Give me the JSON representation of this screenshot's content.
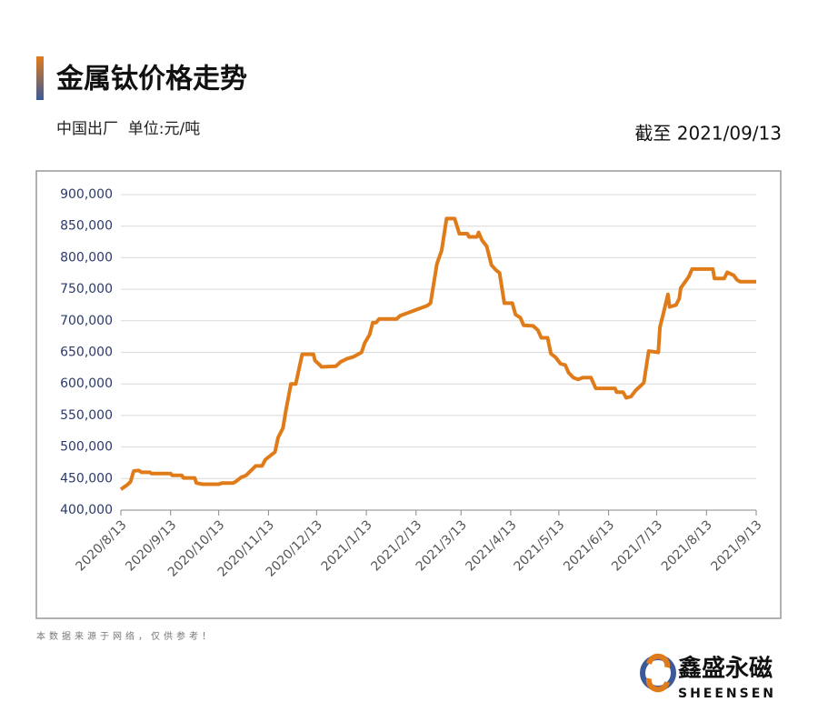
{
  "header": {
    "title": "金属钛价格走势",
    "subtitle": "中国出厂  单位:元/吨",
    "date": "截至 2021/09/13"
  },
  "chart_data": {
    "type": "line",
    "color": "#e07b1a",
    "grid": true,
    "x": [
      "2020/8/13",
      "2020/8/17",
      "2020/8/19",
      "2020/8/21",
      "2020/8/24",
      "2020/8/26",
      "2020/8/31",
      "2020/9/1",
      "2020/9/13",
      "2020/9/14",
      "2020/9/20",
      "2020/9/21",
      "2020/9/28",
      "2020/9/29",
      "2020/10/3",
      "2020/10/13",
      "2020/10/15",
      "2020/10/22",
      "2020/10/24",
      "2020/10/27",
      "2020/10/30",
      "2020/11/5",
      "2020/11/9",
      "2020/11/11",
      "2020/11/15",
      "2020/11/17",
      "2020/11/19",
      "2020/11/22",
      "2020/11/24",
      "2020/11/27",
      "2020/11/30",
      "2020/12/4",
      "2020/12/11",
      "2020/12/12",
      "2020/12/15",
      "2020/12/16",
      "2020/12/25",
      "2020/12/28",
      "2021/1/1",
      "2021/1/5",
      "2021/1/10",
      "2021/1/12",
      "2021/1/15",
      "2021/1/17",
      "2021/1/19",
      "2021/1/21",
      "2021/2/1",
      "2021/2/3",
      "2021/2/20",
      "2021/2/22",
      "2021/2/26",
      "2021/3/1",
      "2021/3/4",
      "2021/3/9",
      "2021/3/12",
      "2021/3/17",
      "2021/3/18",
      "2021/3/23",
      "2021/3/24",
      "2021/3/26",
      "2021/3/29",
      "2021/4/1",
      "2021/4/4",
      "2021/4/6",
      "2021/4/9",
      "2021/4/14",
      "2021/4/16",
      "2021/4/19",
      "2021/4/21",
      "2021/4/27",
      "2021/4/30",
      "2021/5/2",
      "2021/5/6",
      "2021/5/8",
      "2021/5/11",
      "2021/5/14",
      "2021/5/17",
      "2021/5/19",
      "2021/5/22",
      "2021/5/25",
      "2021/5/28",
      "2021/6/2",
      "2021/6/5",
      "2021/6/17",
      "2021/6/18",
      "2021/6/22",
      "2021/6/24",
      "2021/6/27",
      "2021/6/30",
      "2021/7/3",
      "2021/7/5",
      "2021/7/8",
      "2021/7/14",
      "2021/7/15",
      "2021/7/17",
      "2021/7/20",
      "2021/7/21",
      "2021/7/25",
      "2021/7/27",
      "2021/7/28",
      "2021/8/2",
      "2021/8/4",
      "2021/8/17",
      "2021/8/18",
      "2021/8/24",
      "2021/8/26",
      "2021/8/30",
      "2021/9/1",
      "2021/9/3",
      "2021/9/13"
    ],
    "values": [
      433000,
      440000,
      445000,
      462000,
      463000,
      460000,
      460000,
      458000,
      458000,
      455000,
      455000,
      451000,
      451000,
      443000,
      441000,
      441000,
      443000,
      443000,
      446000,
      452000,
      455000,
      470000,
      470000,
      480000,
      488000,
      492000,
      515000,
      530000,
      560000,
      600000,
      600000,
      647000,
      647000,
      637000,
      630000,
      627000,
      628000,
      635000,
      640000,
      643000,
      650000,
      665000,
      678000,
      697000,
      697000,
      703000,
      703000,
      708000,
      724000,
      728000,
      790000,
      812000,
      862000,
      862000,
      838000,
      838000,
      833000,
      833000,
      840000,
      828000,
      818000,
      788000,
      780000,
      776000,
      728000,
      728000,
      710000,
      705000,
      693000,
      692000,
      685000,
      673000,
      673000,
      648000,
      642000,
      632000,
      630000,
      618000,
      610000,
      607000,
      610000,
      610000,
      593000,
      593000,
      587000,
      587000,
      578000,
      580000,
      590000,
      597000,
      602000,
      652000,
      650000,
      690000,
      710000,
      742000,
      722000,
      725000,
      735000,
      752000,
      770000,
      782000,
      782000,
      767000,
      767000,
      777000,
      772000,
      765000,
      762000,
      762000
    ],
    "xlim": [
      "2020/8/13",
      "2021/9/13"
    ],
    "xticks": [
      "2020/8/13",
      "2020/9/13",
      "2020/10/13",
      "2020/11/13",
      "2020/12/13",
      "2021/1/13",
      "2021/2/13",
      "2021/3/13",
      "2021/4/13",
      "2021/5/13",
      "2021/6/13",
      "2021/7/13",
      "2021/8/13",
      "2021/9/13"
    ],
    "ylim": [
      400000,
      900000
    ],
    "yticks": [
      {
        "value": 400000,
        "label": "400,000"
      },
      {
        "value": 450000,
        "label": "450,000"
      },
      {
        "value": 500000,
        "label": "500,000"
      },
      {
        "value": 550000,
        "label": "550,000"
      },
      {
        "value": 600000,
        "label": "600,000"
      },
      {
        "value": 650000,
        "label": "650,000"
      },
      {
        "value": 700000,
        "label": "700,000"
      },
      {
        "value": 750000,
        "label": "750,000"
      },
      {
        "value": 800000,
        "label": "800,000"
      },
      {
        "value": 850000,
        "label": "850,000"
      },
      {
        "value": 900000,
        "label": "900,000"
      }
    ]
  },
  "footer": {
    "note": "本数据来源于网络，仅供参考！",
    "brand": "鑫盛永磁",
    "brand_en": "SHEENSEN"
  }
}
